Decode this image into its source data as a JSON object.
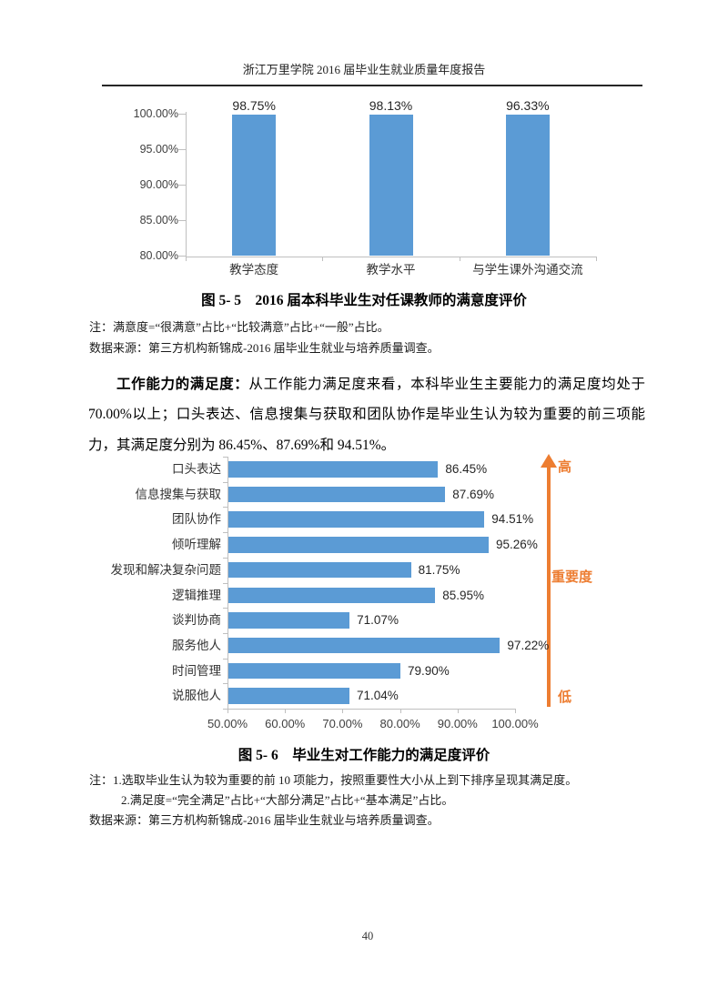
{
  "header": {
    "title": "浙江万里学院 2016 届毕业生就业质量年度报告"
  },
  "chart_data": [
    {
      "id": "teacher-satisfaction",
      "type": "bar",
      "title": "",
      "categories": [
        "教学态度",
        "教学水平",
        "与学生课外沟通交流"
      ],
      "values": [
        98.75,
        98.13,
        96.33
      ],
      "value_labels": [
        "98.75%",
        "98.13%",
        "96.33%"
      ],
      "ylim": [
        80,
        100
      ],
      "ytick_labels": [
        "100.00%",
        "95.00%",
        "90.00%",
        "85.00%",
        "80.00%"
      ],
      "grid": "off",
      "legend": "none",
      "bar_color": "#5b9bd5"
    },
    {
      "id": "work-ability-satisfaction",
      "type": "bar",
      "orientation": "horizontal",
      "title": "",
      "categories": [
        "口头表达",
        "信息搜集与获取",
        "团队协作",
        "倾听理解",
        "发现和解决复杂问题",
        "逻辑推理",
        "谈判协商",
        "服务他人",
        "时间管理",
        "说服他人"
      ],
      "values": [
        86.45,
        87.69,
        94.51,
        95.26,
        81.75,
        85.95,
        71.07,
        97.22,
        79.9,
        71.04
      ],
      "value_labels": [
        "86.45%",
        "87.69%",
        "94.51%",
        "95.26%",
        "81.75%",
        "85.95%",
        "71.07%",
        "97.22%",
        "79.90%",
        "71.04%"
      ],
      "xlim": [
        50,
        100
      ],
      "xtick_labels": [
        "50.00%",
        "60.00%",
        "70.00%",
        "80.00%",
        "90.00%",
        "100.00%"
      ],
      "grid": "off",
      "legend": "none",
      "bar_color": "#5b9bd5",
      "annotation_arrow": {
        "top_label": "高",
        "mid_label": "重要度",
        "bottom_label": "低",
        "color": "#ed7d31"
      }
    }
  ],
  "figure5_5": {
    "caption": "图 5- 5　2016 届本科毕业生对任课教师的满意度评价",
    "note": "注：满意度=“很满意”占比+“比较满意”占比+“一般”占比。",
    "source": "数据来源：第三方机构新锦成-2016 届毕业生就业与培养质量调查。"
  },
  "paragraph": {
    "lead": "工作能力的满足度：",
    "text": "从工作能力满足度来看，本科毕业生主要能力的满足度均处于 70.00%以上；口头表达、信息搜集与获取和团队协作是毕业生认为较为重要的前三项能力，其满足度分别为 86.45%、87.69%和 94.51%。"
  },
  "figure5_6": {
    "caption": "图 5- 6　毕业生对工作能力的满足度评价",
    "note1": "注：1.选取毕业生认为较为重要的前 10 项能力，按照重要性大小从上到下排序呈现其满足度。",
    "note2": "2.满足度=“完全满足”占比+“大部分满足”占比+“基本满足”占比。",
    "source": "数据来源：第三方机构新锦成-2016 届毕业生就业与培养质量调查。"
  },
  "footer": {
    "page_number": "40"
  }
}
